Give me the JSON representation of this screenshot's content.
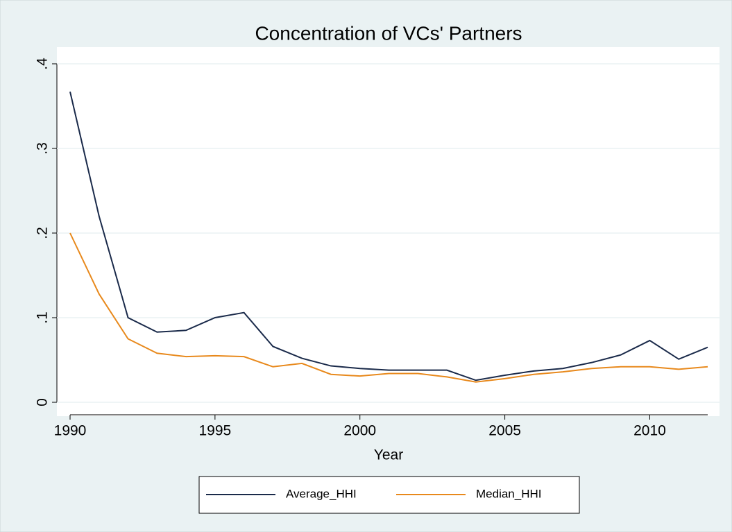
{
  "chart_data": {
    "type": "line",
    "title": "Concentration of VCs' Partners",
    "xlabel": "Year",
    "x": [
      1990,
      1991,
      1992,
      1993,
      1994,
      1995,
      1996,
      1997,
      1998,
      1999,
      2000,
      2001,
      2002,
      2003,
      2004,
      2005,
      2006,
      2007,
      2008,
      2009,
      2010,
      2011,
      2012
    ],
    "series": [
      {
        "name": "Average_HHI",
        "color": "#1a2a4a",
        "values": [
          0.367,
          0.22,
          0.1,
          0.083,
          0.085,
          0.1,
          0.106,
          0.066,
          0.052,
          0.043,
          0.04,
          0.038,
          0.038,
          0.038,
          0.026,
          0.032,
          0.037,
          0.04,
          0.047,
          0.056,
          0.073,
          0.051,
          0.065
        ]
      },
      {
        "name": "Median_HHI",
        "color": "#e8891c",
        "values": [
          0.2,
          0.128,
          0.075,
          0.058,
          0.054,
          0.055,
          0.054,
          0.042,
          0.046,
          0.033,
          0.031,
          0.034,
          0.034,
          0.03,
          0.024,
          0.028,
          0.033,
          0.036,
          0.04,
          0.042,
          0.042,
          0.039,
          0.042
        ]
      }
    ],
    "xlim": [
      1990,
      2012
    ],
    "xticks": [
      1990,
      1995,
      2000,
      2005,
      2010
    ],
    "ylim": [
      0,
      0.4
    ],
    "yticks": [
      0,
      {
        "value": 0.1,
        "label": ".1"
      },
      {
        "value": 0.2,
        "label": ".2"
      },
      {
        "value": 0.3,
        "label": ".3"
      },
      {
        "value": 0.4,
        "label": ".4"
      }
    ],
    "grid": true,
    "legend": "bottom"
  }
}
